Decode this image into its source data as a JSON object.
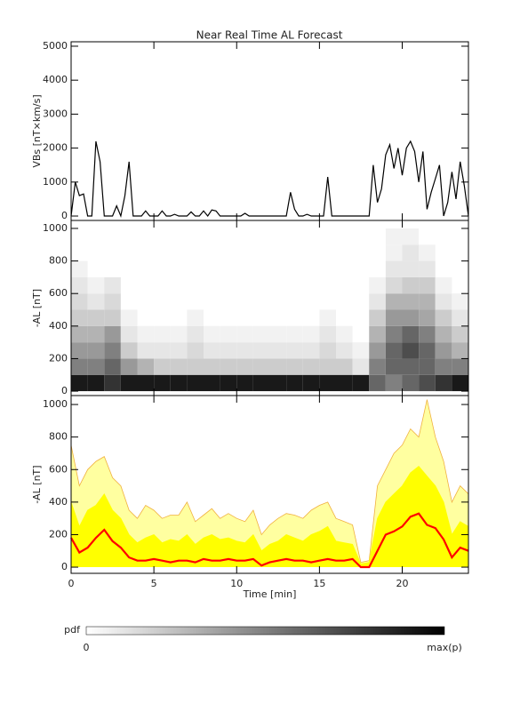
{
  "chart_data": [
    {
      "type": "line",
      "title": "Near Real Time AL Forecast",
      "ylabel": "VBs [nT×km/s]",
      "color": "#000000",
      "x": [
        0,
        0.25,
        0.5,
        0.75,
        1,
        1.25,
        1.5,
        1.75,
        2,
        2.25,
        2.5,
        2.75,
        3,
        3.25,
        3.5,
        3.75,
        4,
        4.25,
        4.5,
        4.75,
        5,
        5.25,
        5.5,
        5.75,
        6,
        6.25,
        6.5,
        6.75,
        7,
        7.25,
        7.5,
        7.75,
        8,
        8.25,
        8.5,
        8.75,
        9,
        9.25,
        9.5,
        9.75,
        10,
        10.25,
        10.5,
        10.75,
        11,
        11.25,
        11.5,
        11.75,
        12,
        12.25,
        12.5,
        12.75,
        13,
        13.25,
        13.5,
        13.75,
        14,
        14.25,
        14.5,
        14.75,
        15,
        15.25,
        15.5,
        15.75,
        16,
        16.25,
        16.5,
        16.75,
        17,
        17.25,
        17.5,
        17.75,
        18,
        18.25,
        18.5,
        18.75,
        19,
        19.25,
        19.5,
        19.75,
        20,
        20.25,
        20.5,
        20.75,
        21,
        21.25,
        21.5,
        21.75,
        22,
        22.25,
        22.5,
        22.75,
        23,
        23.25,
        23.5,
        23.75,
        24
      ],
      "values": [
        0,
        1000,
        600,
        650,
        0,
        0,
        2200,
        1600,
        0,
        0,
        0,
        300,
        0,
        600,
        1600,
        0,
        0,
        0,
        150,
        0,
        0,
        0,
        150,
        0,
        0,
        50,
        0,
        0,
        0,
        120,
        0,
        0,
        150,
        0,
        180,
        150,
        0,
        0,
        0,
        0,
        0,
        0,
        80,
        0,
        0,
        0,
        0,
        0,
        0,
        0,
        0,
        0,
        0,
        700,
        200,
        0,
        0,
        50,
        0,
        0,
        0,
        0,
        1150,
        0,
        0,
        0,
        0,
        0,
        0,
        0,
        0,
        0,
        0,
        1500,
        400,
        800,
        1800,
        2100,
        1400,
        2000,
        1200,
        2000,
        2200,
        1900,
        1000,
        1900,
        200,
        700,
        1100,
        1500,
        0,
        400,
        1300,
        500,
        1600,
        900,
        0
      ],
      "xlim": [
        0,
        24
      ],
      "xticks": [
        0,
        5,
        10,
        15,
        20
      ],
      "ylim": [
        -130,
        5130
      ],
      "yticks": [
        0,
        1000,
        2000,
        3000,
        4000,
        5000
      ]
    },
    {
      "type": "heatmap",
      "ylabel": "-AL [nT]",
      "xbins": [
        0,
        1,
        2,
        3,
        4,
        5,
        6,
        7,
        8,
        9,
        10,
        11,
        12,
        13,
        14,
        15,
        16,
        17,
        18,
        19,
        20,
        21,
        22,
        23,
        24
      ],
      "ybins": [
        0,
        100,
        200,
        300,
        400,
        500,
        600,
        700,
        800,
        900,
        1000
      ],
      "z": [
        [
          0.9,
          0.9,
          0.8,
          0.9,
          0.9,
          0.9,
          0.9,
          0.9,
          0.9,
          0.9,
          0.9,
          0.9,
          0.9,
          0.9,
          0.9,
          0.9,
          0.9,
          0.9,
          0.6,
          0.5,
          0.6,
          0.7,
          0.8,
          0.9
        ],
        [
          0.5,
          0.5,
          0.6,
          0.4,
          0.3,
          0.2,
          0.2,
          0.2,
          0.2,
          0.2,
          0.2,
          0.2,
          0.2,
          0.2,
          0.2,
          0.2,
          0.2,
          0.1,
          0.5,
          0.6,
          0.6,
          0.6,
          0.5,
          0.5
        ],
        [
          0.4,
          0.4,
          0.5,
          0.2,
          0.1,
          0.1,
          0.1,
          0.15,
          0.1,
          0.1,
          0.1,
          0.1,
          0.1,
          0.1,
          0.1,
          0.15,
          0.1,
          0.05,
          0.4,
          0.6,
          0.7,
          0.6,
          0.4,
          0.3
        ],
        [
          0.3,
          0.3,
          0.4,
          0.1,
          0.05,
          0.05,
          0.05,
          0.1,
          0.05,
          0.05,
          0.05,
          0.05,
          0.05,
          0.05,
          0.05,
          0.1,
          0.05,
          0,
          0.3,
          0.5,
          0.6,
          0.5,
          0.3,
          0.2
        ],
        [
          0.2,
          0.2,
          0.2,
          0.05,
          0,
          0,
          0,
          0.05,
          0,
          0,
          0,
          0,
          0,
          0,
          0,
          0.05,
          0,
          0,
          0.2,
          0.4,
          0.4,
          0.35,
          0.2,
          0.1
        ],
        [
          0.15,
          0.1,
          0.15,
          0,
          0,
          0,
          0,
          0,
          0,
          0,
          0,
          0,
          0,
          0,
          0,
          0,
          0,
          0,
          0.1,
          0.3,
          0.3,
          0.3,
          0.1,
          0.05
        ],
        [
          0.1,
          0.05,
          0.1,
          0,
          0,
          0,
          0,
          0,
          0,
          0,
          0,
          0,
          0,
          0,
          0,
          0,
          0,
          0,
          0.05,
          0.15,
          0.2,
          0.2,
          0.05,
          0
        ],
        [
          0.05,
          0,
          0,
          0,
          0,
          0,
          0,
          0,
          0,
          0,
          0,
          0,
          0,
          0,
          0,
          0,
          0,
          0,
          0,
          0.1,
          0.1,
          0.1,
          0,
          0
        ],
        [
          0,
          0,
          0,
          0,
          0,
          0,
          0,
          0,
          0,
          0,
          0,
          0,
          0,
          0,
          0,
          0,
          0,
          0,
          0,
          0.05,
          0.1,
          0.05,
          0,
          0
        ],
        [
          0,
          0,
          0,
          0,
          0,
          0,
          0,
          0,
          0,
          0,
          0,
          0,
          0,
          0,
          0,
          0,
          0,
          0,
          0,
          0.05,
          0.05,
          0,
          0,
          0
        ]
      ],
      "xlim": [
        0,
        24
      ],
      "xticks": [
        0,
        5,
        10,
        15,
        20
      ],
      "ylim": [
        -27,
        1049
      ],
      "yticks": [
        0,
        200,
        400,
        600,
        800,
        1000
      ]
    },
    {
      "type": "bands",
      "ylabel": "-AL [nT]",
      "xlabel": "Time [min]",
      "x": [
        0,
        0.5,
        1,
        1.5,
        2,
        2.5,
        3,
        3.5,
        4,
        4.5,
        5,
        5.5,
        6,
        6.5,
        7,
        7.5,
        8,
        8.5,
        9,
        9.5,
        10,
        10.5,
        11,
        11.5,
        12,
        12.5,
        13,
        13.5,
        14,
        14.5,
        15,
        15.5,
        16,
        16.5,
        17,
        17.5,
        18,
        18.5,
        19,
        19.5,
        20,
        20.5,
        21,
        21.5,
        22,
        22.5,
        23,
        23.5,
        24
      ],
      "series": [
        {
          "style": "area",
          "color": "#ffffa0",
          "edge": "#f0b040",
          "values": [
            750,
            500,
            600,
            650,
            680,
            550,
            500,
            350,
            300,
            380,
            350,
            300,
            320,
            320,
            400,
            280,
            320,
            360,
            300,
            330,
            300,
            280,
            350,
            200,
            260,
            300,
            330,
            320,
            300,
            350,
            380,
            400,
            300,
            280,
            260,
            30,
            40,
            500,
            600,
            700,
            750,
            850,
            800,
            1030,
            800,
            650,
            400,
            500,
            450
          ]
        },
        {
          "style": "area",
          "color": "#ffff00",
          "edge": "#ffff00",
          "values": [
            400,
            250,
            350,
            380,
            450,
            350,
            300,
            200,
            150,
            180,
            200,
            150,
            170,
            160,
            200,
            140,
            180,
            200,
            170,
            180,
            160,
            150,
            200,
            100,
            140,
            160,
            200,
            180,
            160,
            200,
            220,
            250,
            160,
            150,
            140,
            20,
            30,
            300,
            400,
            450,
            500,
            580,
            620,
            560,
            500,
            400,
            200,
            280,
            250
          ]
        },
        {
          "style": "line",
          "color": "#ff0000",
          "values": [
            180,
            90,
            120,
            180,
            230,
            160,
            120,
            60,
            40,
            40,
            50,
            40,
            30,
            40,
            40,
            30,
            50,
            40,
            40,
            50,
            40,
            40,
            50,
            10,
            30,
            40,
            50,
            40,
            40,
            30,
            40,
            50,
            40,
            40,
            50,
            0,
            0,
            100,
            200,
            220,
            250,
            310,
            330,
            260,
            240,
            170,
            60,
            120,
            100
          ]
        }
      ],
      "xlim": [
        0,
        24
      ],
      "xticks": [
        0,
        5,
        10,
        15,
        20
      ],
      "ylim": [
        -38,
        1055
      ],
      "yticks": [
        0,
        200,
        400,
        600,
        800,
        1000
      ]
    }
  ],
  "colorbar": {
    "label": "pdf",
    "min_label": "0",
    "max_label": "max(p)"
  }
}
